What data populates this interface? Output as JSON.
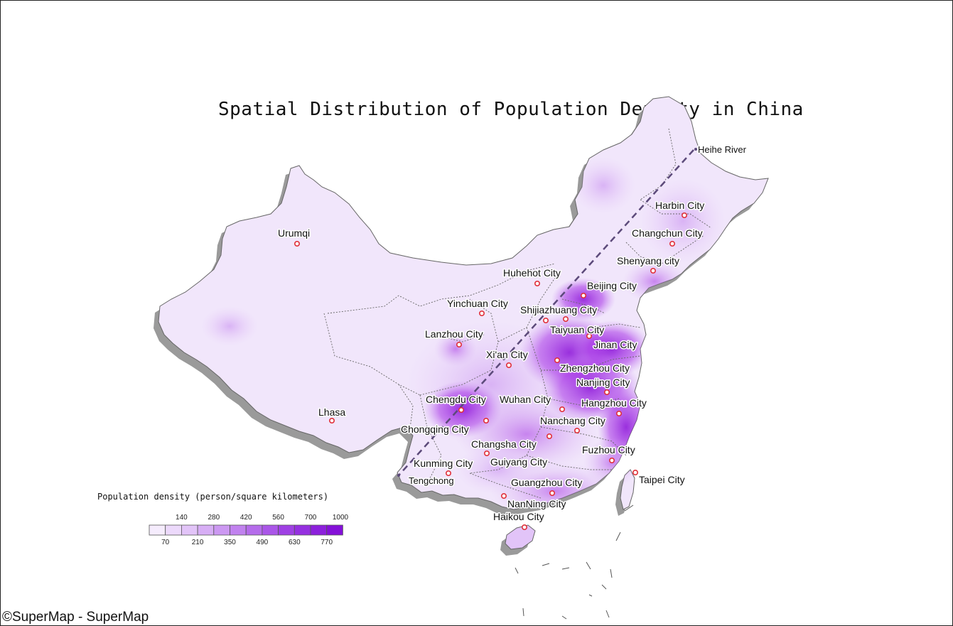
{
  "title": "Spatial Distribution of Population Density in China",
  "copyright": "©SuperMap - SuperMap",
  "colors": {
    "land_base": "#f1e6fb",
    "land_mid": "#dcb9f5",
    "density_high": "#a52ee6",
    "density_peak": "#8a10d8",
    "city_marker": "#e0303a",
    "border": "#555555",
    "shadow": "#9a9a9a"
  },
  "hu_line": {
    "label": "Heihe River",
    "from": "Heihe River",
    "to": "Tengchong"
  },
  "cities": [
    {
      "name": "Heihe River",
      "kind": "endpoint"
    },
    {
      "name": "Harbin City"
    },
    {
      "name": "Changchun City"
    },
    {
      "name": "Shenyang city"
    },
    {
      "name": "Urumqi"
    },
    {
      "name": "Huhehot City"
    },
    {
      "name": "Beijing City"
    },
    {
      "name": "Yinchuan City"
    },
    {
      "name": "Shijiazhuang City"
    },
    {
      "name": "Taiyuan City"
    },
    {
      "name": "Lanzhou City"
    },
    {
      "name": "Jinan City"
    },
    {
      "name": "Xi'an City"
    },
    {
      "name": "Zhengzhou City"
    },
    {
      "name": "Nanjing City"
    },
    {
      "name": "Chengdu City"
    },
    {
      "name": "Wuhan City"
    },
    {
      "name": "Hangzhou City"
    },
    {
      "name": "Lhasa"
    },
    {
      "name": "Chongqing City"
    },
    {
      "name": "Nanchang City"
    },
    {
      "name": "Changsha City"
    },
    {
      "name": "Fuzhou City"
    },
    {
      "name": "Kunming City"
    },
    {
      "name": "Guiyang City"
    },
    {
      "name": "Taipei City"
    },
    {
      "name": "Tengchong",
      "kind": "endpoint"
    },
    {
      "name": "Guangzhou City"
    },
    {
      "name": "NanNing City"
    },
    {
      "name": "Haikou City"
    }
  ],
  "legend": {
    "title": "Population density (person/square kilometers)",
    "top_ticks": [
      "140",
      "280",
      "420",
      "560",
      "700",
      "1000"
    ],
    "bottom_ticks": [
      "70",
      "210",
      "350",
      "490",
      "630",
      "770"
    ],
    "classes": [
      "#f5ecfd",
      "#ecd9fb",
      "#e2c4f8",
      "#d7aef5",
      "#cc98f2",
      "#c182ef",
      "#b56ceb",
      "#aa56e8",
      "#9f40e4",
      "#9530e0",
      "#8c20dc",
      "#8410d8"
    ]
  }
}
